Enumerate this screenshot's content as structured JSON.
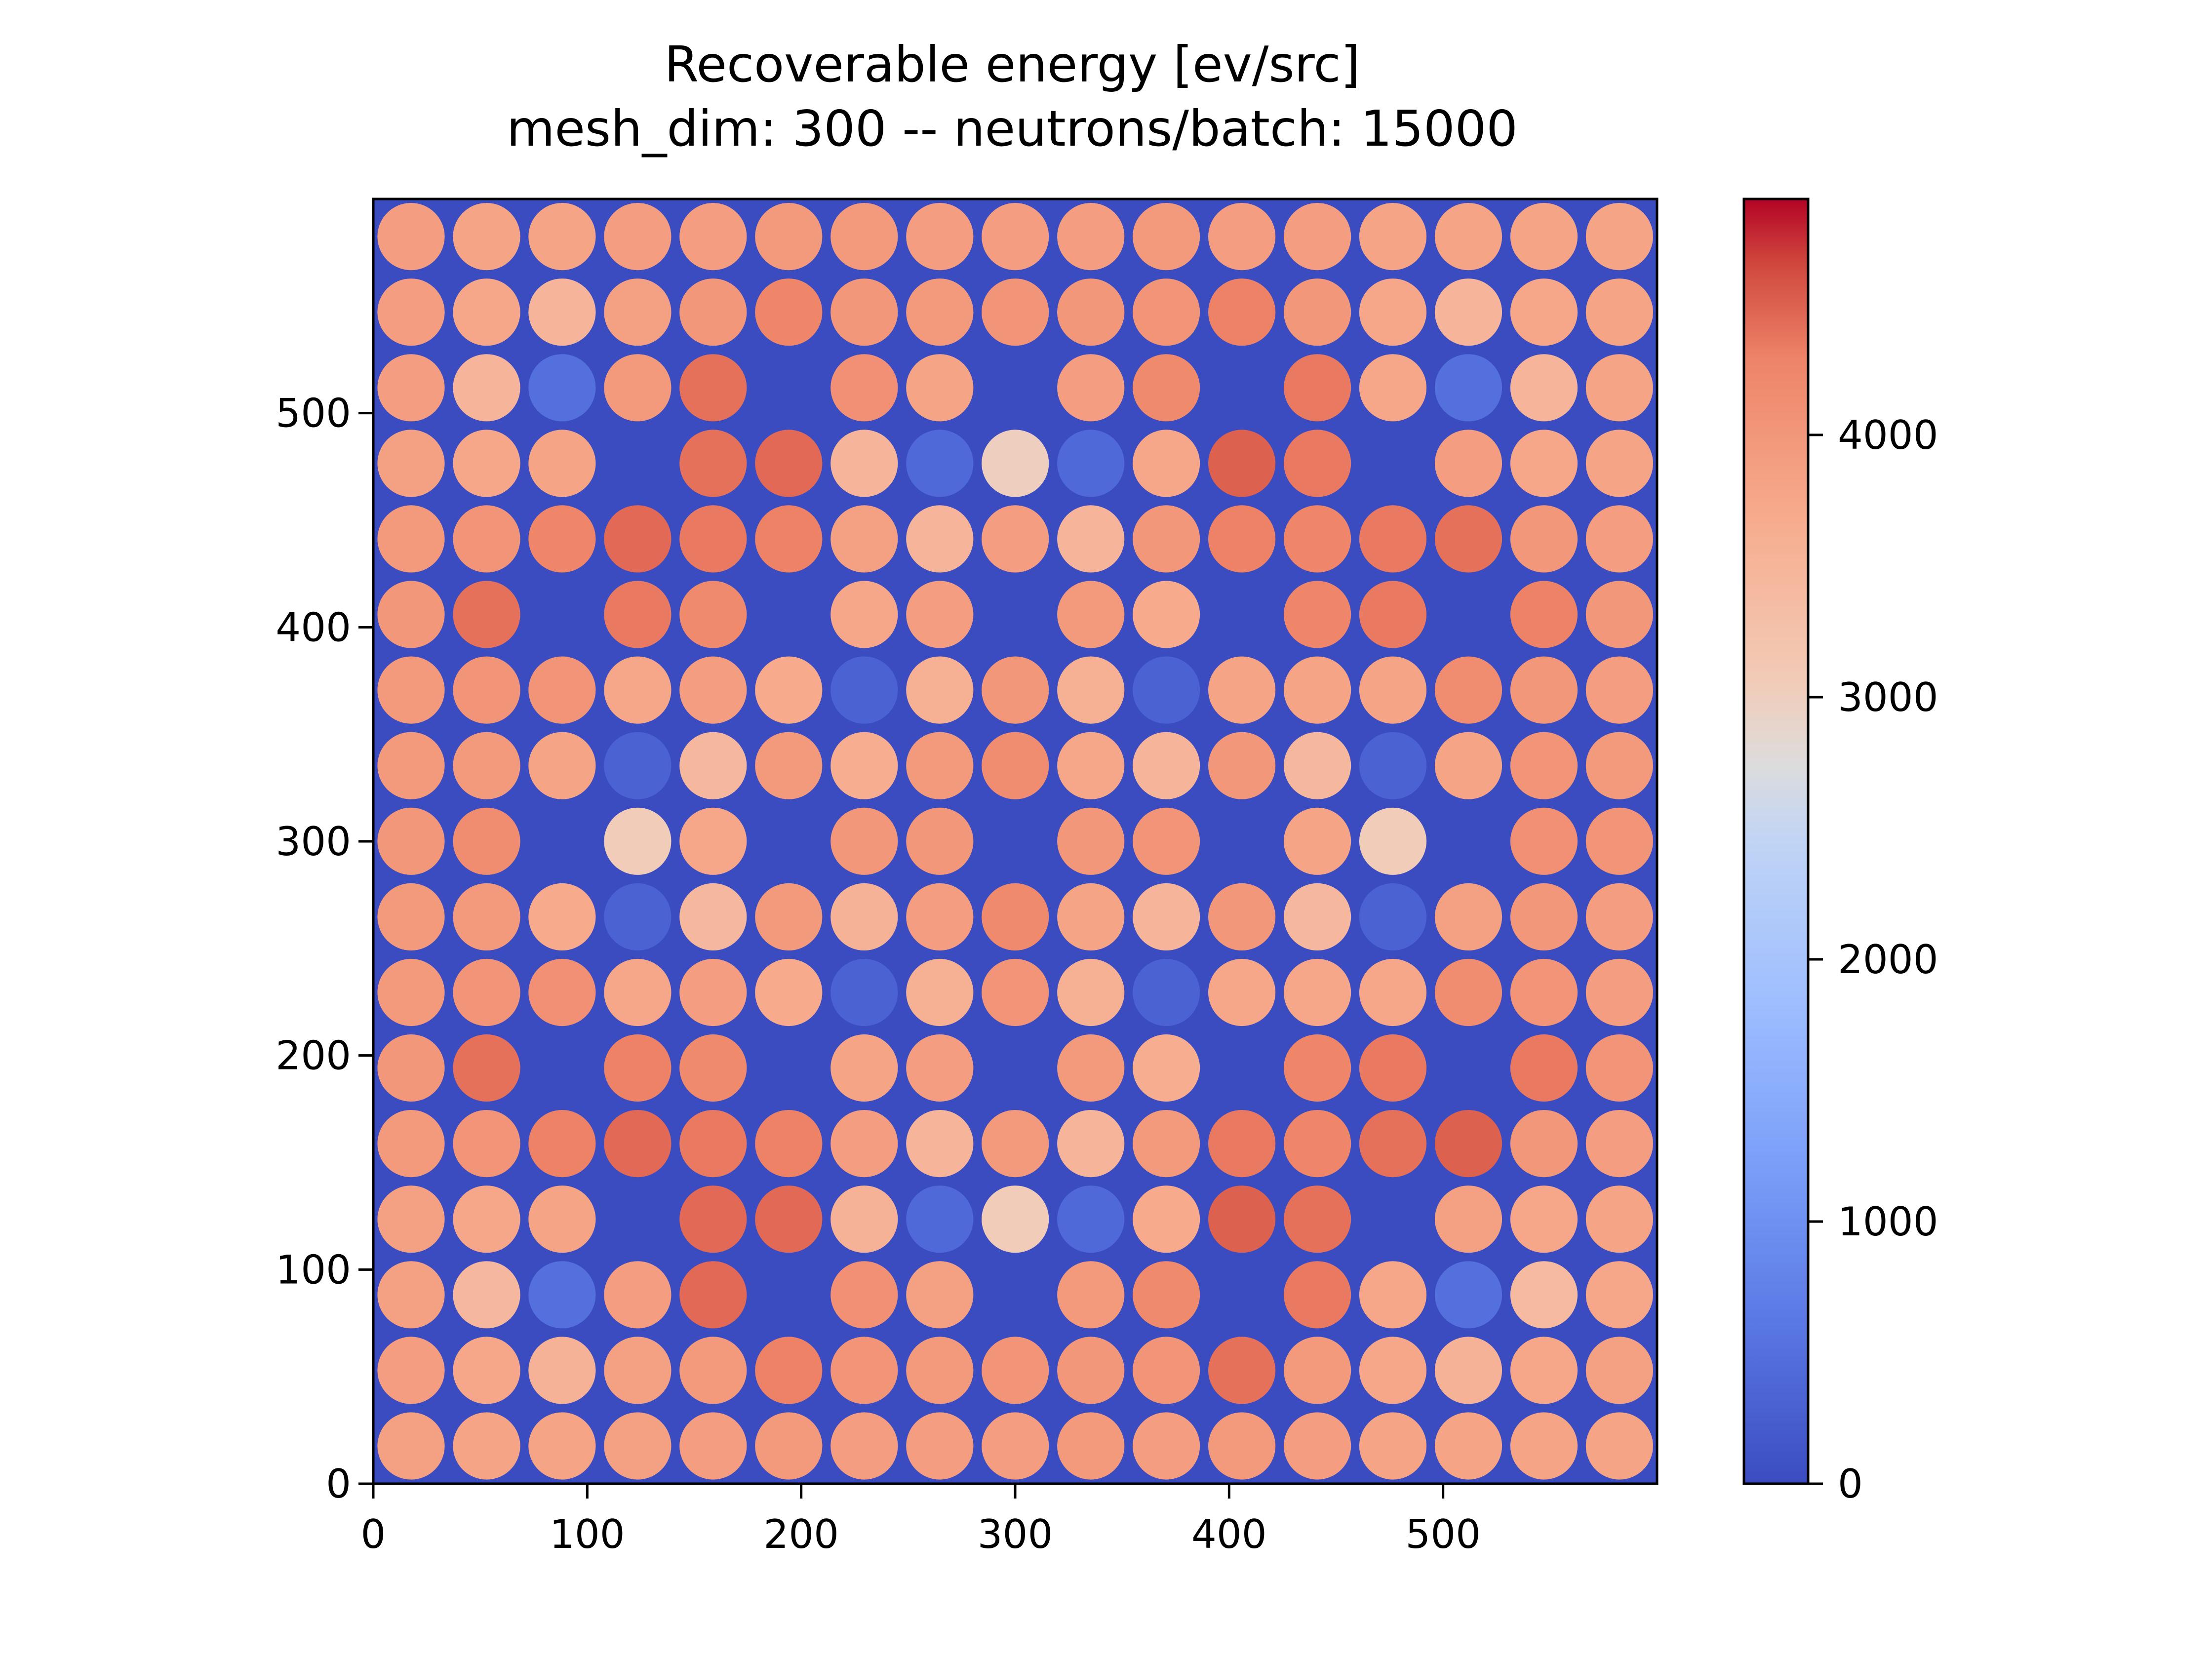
{
  "chart_data": {
    "type": "heatmap",
    "title": "Recoverable energy [ev/src]",
    "subtitle": "mesh_dim: 300 -- neutrons/batch: 15000",
    "xlabel": "",
    "ylabel": "",
    "xlim": [
      0,
      600
    ],
    "ylim": [
      0,
      600
    ],
    "x_ticks": [
      0,
      100,
      200,
      300,
      400,
      500
    ],
    "y_ticks": [
      0,
      100,
      200,
      300,
      400,
      500
    ],
    "colorbar": {
      "colormap": "coolwarm",
      "vmin": 0,
      "vmax": 4900,
      "ticks": [
        0,
        1000,
        2000,
        3000,
        4000
      ]
    },
    "background_value": 0,
    "pin_pitch": 35.3,
    "pin_grid_size": 17,
    "pin_values": [
      [
        3900,
        3800,
        3800,
        3900,
        3900,
        3950,
        3950,
        3900,
        3900,
        3900,
        3950,
        3900,
        3900,
        3800,
        3800,
        3800,
        3800
      ],
      [
        3900,
        3750,
        3500,
        3850,
        4000,
        4250,
        4000,
        3950,
        4050,
        4000,
        4050,
        4300,
        4000,
        3750,
        3500,
        3750,
        3800
      ],
      [
        3900,
        3500,
        500,
        3950,
        4400,
        0,
        4100,
        3800,
        0,
        3900,
        4200,
        0,
        4350,
        3750,
        500,
        3500,
        3800
      ],
      [
        3850,
        3750,
        3800,
        0,
        4400,
        4450,
        3500,
        400,
        3000,
        400,
        3750,
        4500,
        4350,
        0,
        3900,
        3750,
        3800
      ],
      [
        3950,
        4050,
        4250,
        4450,
        4350,
        4300,
        3850,
        3500,
        3900,
        3500,
        4000,
        4300,
        4250,
        4350,
        4400,
        4000,
        3900
      ],
      [
        4000,
        4400,
        0,
        4350,
        4200,
        0,
        3750,
        3900,
        0,
        3950,
        3700,
        0,
        4250,
        4350,
        0,
        4300,
        4000
      ],
      [
        3950,
        4050,
        4050,
        3750,
        3900,
        3700,
        300,
        3600,
        4000,
        3600,
        300,
        3800,
        3800,
        3800,
        4150,
        4000,
        3900
      ],
      [
        3950,
        3950,
        3800,
        300,
        3450,
        3950,
        3650,
        3950,
        4150,
        3750,
        3500,
        4000,
        3450,
        300,
        3800,
        4050,
        3950
      ],
      [
        4000,
        4150,
        0,
        3050,
        3750,
        0,
        4000,
        4000,
        0,
        4000,
        4050,
        0,
        3800,
        3050,
        0,
        4100,
        4050
      ],
      [
        3950,
        3950,
        3700,
        300,
        3450,
        3950,
        3550,
        3900,
        4200,
        3800,
        3500,
        4000,
        3450,
        300,
        3850,
        4000,
        3900
      ],
      [
        3950,
        4050,
        4100,
        3750,
        3900,
        3700,
        300,
        3600,
        4050,
        3600,
        300,
        3750,
        3750,
        3750,
        4150,
        4050,
        3900
      ],
      [
        4000,
        4400,
        0,
        4300,
        4200,
        0,
        3800,
        3900,
        0,
        3950,
        3650,
        0,
        4250,
        4350,
        0,
        4350,
        4050
      ],
      [
        3950,
        4050,
        4300,
        4450,
        4350,
        4300,
        3900,
        3500,
        3950,
        3500,
        3950,
        4350,
        4250,
        4400,
        4500,
        4000,
        3900
      ],
      [
        3850,
        3750,
        3800,
        0,
        4450,
        4450,
        3550,
        400,
        3050,
        400,
        3700,
        4500,
        4400,
        0,
        3850,
        3750,
        3800
      ],
      [
        3850,
        3450,
        500,
        3900,
        4450,
        0,
        4100,
        3850,
        0,
        3950,
        4200,
        0,
        4350,
        3750,
        500,
        3400,
        3750
      ],
      [
        3900,
        3750,
        3550,
        3850,
        3950,
        4300,
        4050,
        3950,
        4050,
        4000,
        4050,
        4400,
        3950,
        3750,
        3550,
        3750,
        3850
      ],
      [
        3850,
        3800,
        3800,
        3850,
        3900,
        3950,
        3900,
        3900,
        3900,
        3950,
        3900,
        3950,
        3900,
        3800,
        3800,
        3800,
        3800
      ]
    ]
  }
}
